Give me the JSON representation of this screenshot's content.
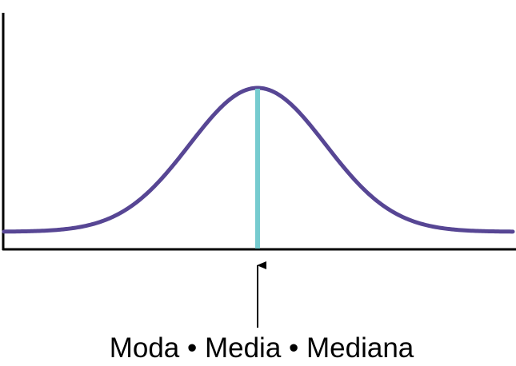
{
  "diagram": {
    "caption": "Moda • Media • Mediana",
    "colors": {
      "curve": "#574694",
      "center_line": "#76CBCF",
      "axes": "#000000",
      "arrow": "#000000",
      "text": "#000000"
    }
  }
}
